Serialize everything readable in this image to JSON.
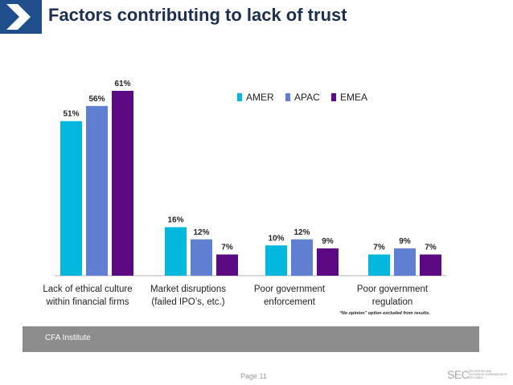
{
  "header": {
    "title": "Factors contributing to lack of trust"
  },
  "chart_data": {
    "type": "bar",
    "categories": [
      "Lack of ethical culture within financial firms",
      "Market disruptions (failed IPO’s, etc.)",
      "Poor government enforcement",
      "Poor government regulation"
    ],
    "category_lines": [
      [
        "Lack of ethical culture",
        "within financial firms"
      ],
      [
        "Market disruptions",
        "(failed IPO’s, etc.)"
      ],
      [
        "Poor government",
        "enforcement"
      ],
      [
        "Poor government",
        "regulation"
      ]
    ],
    "series": [
      {
        "name": "AMER",
        "color": "#00b8de",
        "values": [
          51,
          16,
          10,
          7
        ]
      },
      {
        "name": "APAC",
        "color": "#5e7fd2",
        "values": [
          56,
          12,
          12,
          9
        ]
      },
      {
        "name": "EMEA",
        "color": "#5c0a84",
        "values": [
          61,
          7,
          9,
          7
        ]
      }
    ],
    "value_suffix": "%",
    "ylim": [
      0,
      61
    ],
    "legend_position": "top-right",
    "note": "“No opinion” option excluded from results.",
    "xlabel": "",
    "ylabel": ""
  },
  "footer": {
    "source": "CFA Institute",
    "page": "Page 11",
    "logo_text": "SEC",
    "logo_subtext": "SECURITIES AND EXCHANGE COMMISSION OF SRI LANKA"
  }
}
